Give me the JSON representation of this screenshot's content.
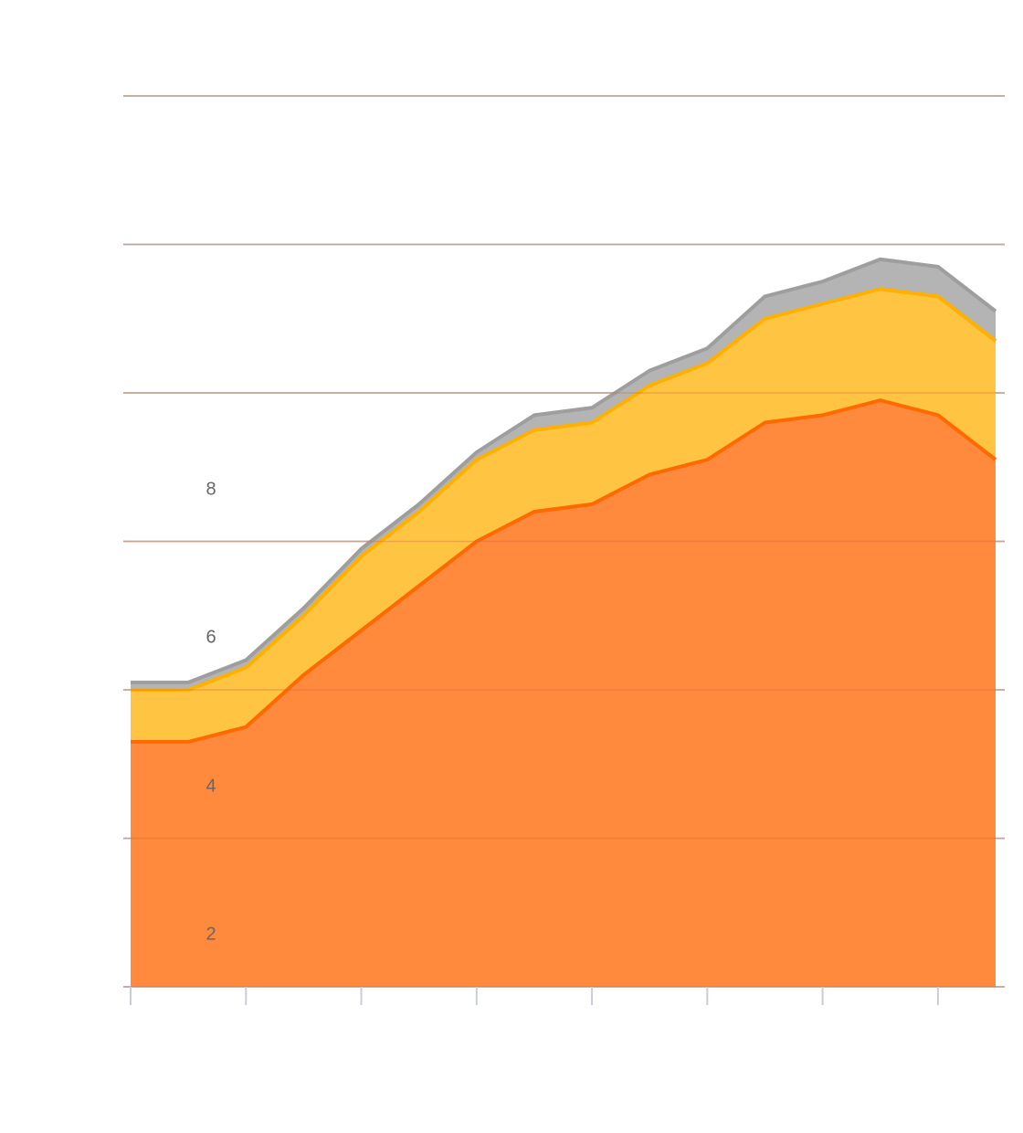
{
  "chart_data": {
    "type": "area",
    "stacked": true,
    "x": [
      0,
      1,
      2,
      3,
      4,
      5,
      6,
      7,
      8,
      9,
      10,
      11,
      12,
      13,
      14,
      15
    ],
    "y_ticks": [
      2,
      4,
      6,
      8
    ],
    "ylim": [
      0,
      12
    ],
    "grid": true,
    "series": [
      {
        "color": "#ff8a3d",
        "line_color": "#ff6a00",
        "values": [
          3.3,
          3.3,
          3.5,
          4.2,
          4.8,
          5.4,
          6.0,
          6.4,
          6.5,
          6.9,
          7.1,
          7.6,
          7.7,
          7.9,
          7.7,
          7.1
        ]
      },
      {
        "color": "#ffc542",
        "line_color": "#ffb000",
        "values": [
          0.7,
          0.7,
          0.8,
          0.8,
          1.0,
          1.0,
          1.1,
          1.1,
          1.1,
          1.2,
          1.3,
          1.4,
          1.5,
          1.5,
          1.6,
          1.6
        ]
      },
      {
        "color": "#b4b4b4",
        "line_color": "#9e9e9e",
        "values": [
          0.1,
          0.1,
          0.1,
          0.1,
          0.1,
          0.1,
          0.1,
          0.2,
          0.2,
          0.2,
          0.2,
          0.3,
          0.3,
          0.4,
          0.4,
          0.4
        ]
      }
    ]
  }
}
